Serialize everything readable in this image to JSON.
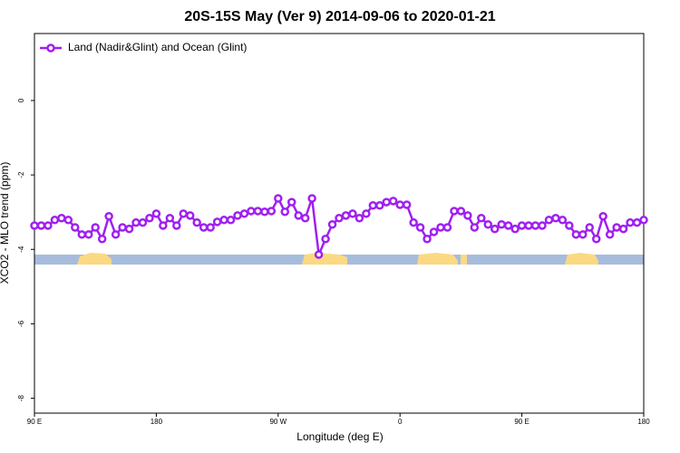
{
  "chart_data": {
    "type": "line",
    "title": "20S-15S May (Ver 9)   2014-09-06 to 2020-01-21",
    "x_label": "Longitude (deg E)",
    "y_label": "XCO2 - MLO trend (ppm)",
    "series": [
      {
        "name": "Land (Nadir&Glint) and Ocean (Glint)",
        "color": "#a020f0",
        "x": [
          90,
          95,
          100,
          105,
          110,
          115,
          120,
          125,
          130,
          135,
          140,
          145,
          150,
          155,
          160,
          165,
          170,
          175,
          180,
          185,
          190,
          195,
          200,
          205,
          210,
          215,
          220,
          225,
          230,
          235,
          240,
          245,
          250,
          255,
          260,
          265,
          270,
          275,
          280,
          285,
          290,
          295,
          300,
          305,
          310,
          315,
          320,
          325,
          330,
          335,
          340,
          345,
          350,
          355,
          360,
          365,
          370,
          375,
          380,
          385,
          390,
          395,
          400,
          405,
          410,
          415,
          420,
          425,
          430,
          435,
          440,
          445,
          450,
          455,
          460,
          465,
          470,
          475,
          480,
          485,
          490,
          495,
          500,
          505,
          510,
          515,
          520,
          525,
          530,
          535,
          540
        ],
        "values": [
          -3.36,
          -3.36,
          -3.36,
          -3.21,
          -3.16,
          -3.21,
          -3.41,
          -3.6,
          -3.6,
          -3.41,
          -3.72,
          -3.11,
          -3.6,
          -3.41,
          -3.45,
          -3.28,
          -3.28,
          -3.16,
          -3.04,
          -3.36,
          -3.16,
          -3.36,
          -3.04,
          -3.09,
          -3.28,
          -3.41,
          -3.41,
          -3.26,
          -3.21,
          -3.21,
          -3.09,
          -3.04,
          -2.97,
          -2.97,
          -2.99,
          -2.97,
          -2.63,
          -2.99,
          -2.73,
          -3.09,
          -3.16,
          -2.63,
          -4.14,
          -3.72,
          -3.33,
          -3.16,
          -3.09,
          -3.04,
          -3.16,
          -3.04,
          -2.82,
          -2.82,
          -2.73,
          -2.7,
          -2.8,
          -2.8,
          -3.28,
          -3.41,
          -3.72,
          -3.53,
          -3.41,
          -3.41,
          -2.97,
          -2.97,
          -3.09,
          -3.41,
          -3.16,
          -3.33,
          -3.45,
          -3.33,
          -3.36,
          -3.45,
          -3.36,
          -3.36,
          -3.36,
          -3.36,
          -3.21,
          -3.16,
          -3.21,
          -3.36,
          -3.6,
          -3.6,
          -3.41,
          -3.72,
          -3.11,
          -3.6,
          -3.41,
          -3.45,
          -3.28,
          -3.28,
          -3.21
        ]
      }
    ],
    "xlim": [
      90,
      540
    ],
    "xticks": [
      {
        "value": 90,
        "label": "90 E"
      },
      180,
      {
        "value": 270,
        "label": "90 W"
      },
      {
        "value": 360,
        "label": "0"
      },
      {
        "value": 450,
        "label": "90 E"
      },
      {
        "value": 540,
        "label": "180"
      }
    ],
    "ylim": [
      -8.4,
      1.8
    ],
    "yticks": [
      0,
      -2,
      -4,
      -6,
      -8
    ],
    "legend": "top-left"
  }
}
